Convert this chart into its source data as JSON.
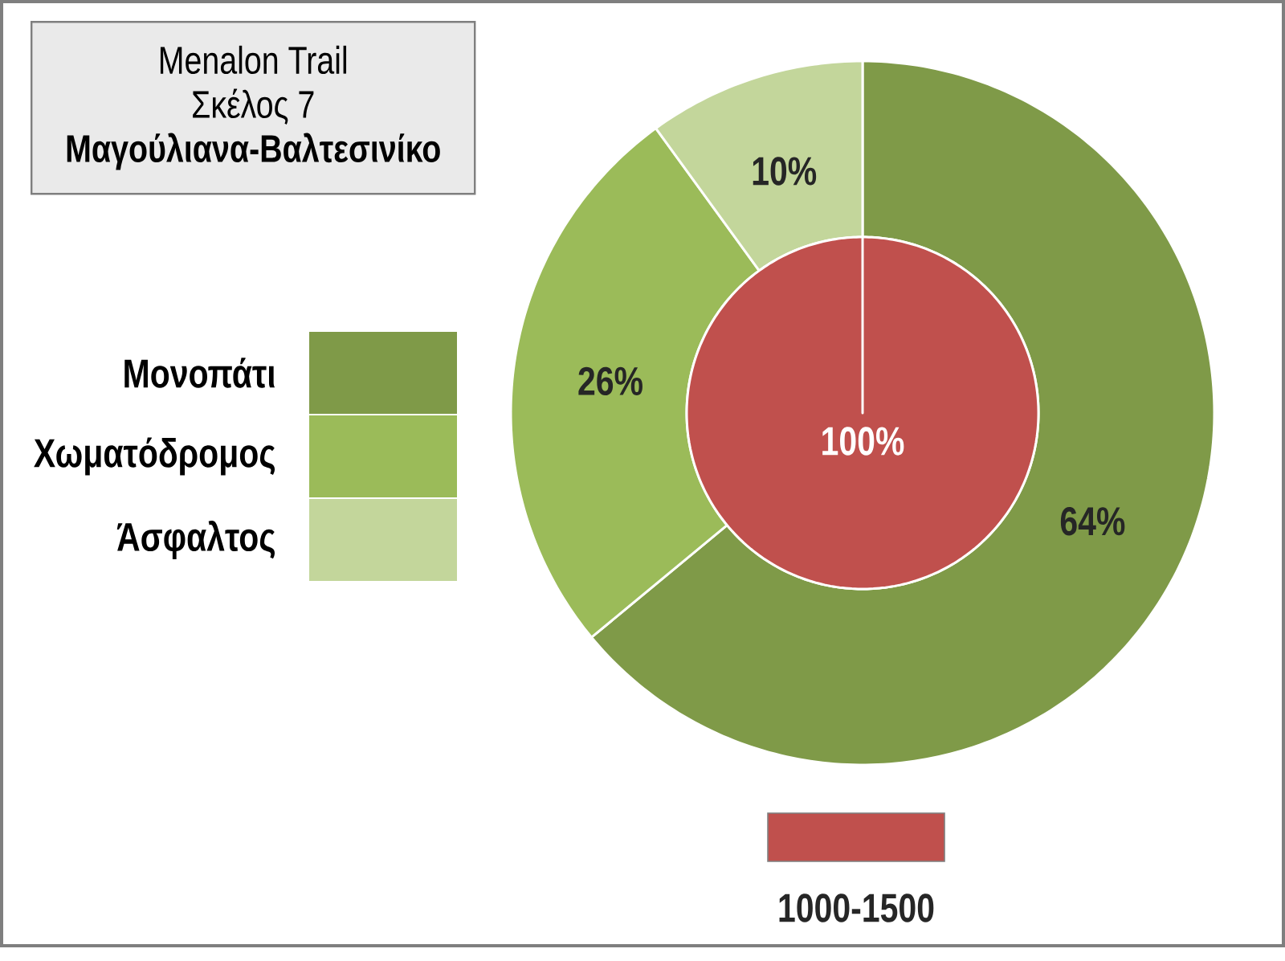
{
  "chart_data": [
    {
      "type": "donut",
      "title": "Menalon Trail",
      "subtitle": "Σκέλος 7 **Μαγούλιανα-Βαλτεσινίκο**",
      "categories": [
        "Μονοπάτι",
        "Χωματόδρομος",
        "Άσφαλτος"
      ],
      "values": [
        64,
        26,
        10
      ],
      "colors": [
        "#7f9a48",
        "#9bbb59",
        "#c3d69b"
      ],
      "value_labels": [
        "64%",
        "26%",
        "10%"
      ],
      "legend": "left"
    },
    {
      "type": "pie",
      "categories": [
        "1000-1500"
      ],
      "values": [
        100
      ],
      "colors": [
        "#c0504d"
      ],
      "value_labels": [
        "100%"
      ],
      "legend": "bottom"
    }
  ]
}
